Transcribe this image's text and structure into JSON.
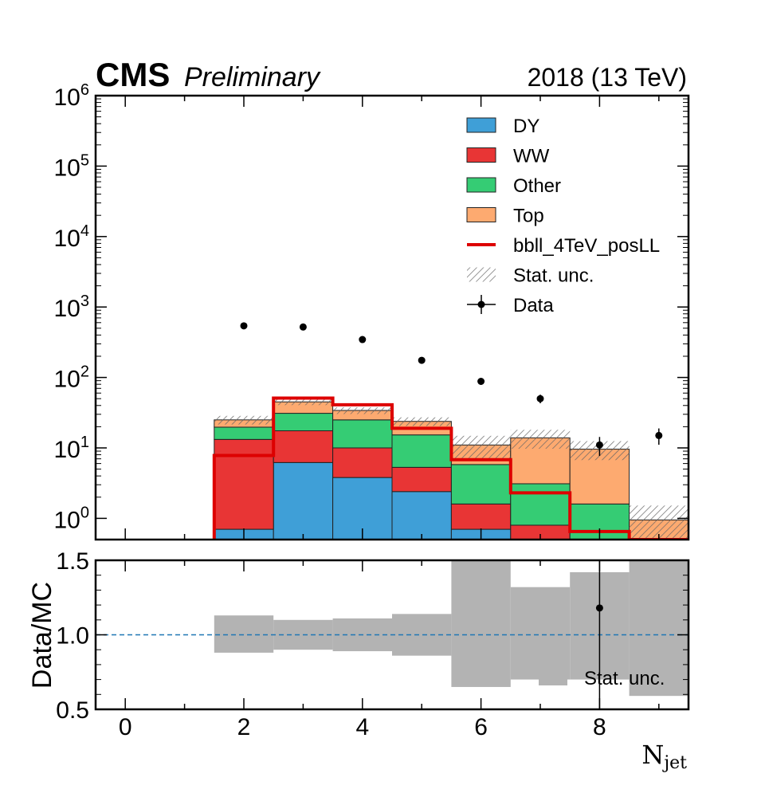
{
  "header": {
    "experiment": "CMS",
    "status": "Preliminary",
    "lumi": "2018 (13 TeV)"
  },
  "colors": {
    "DY": "#3f9fd7",
    "WW": "#e83535",
    "Other": "#35cc74",
    "Top": "#fdaa70",
    "signal": "#dd0000",
    "unc_band": "#b3b3b3",
    "ref_line": "#1f77b4"
  },
  "chart_data": [
    {
      "type": "bar",
      "stacked": true,
      "x_bins": [
        0,
        1,
        2,
        3,
        4,
        5,
        6,
        7,
        8,
        9
      ],
      "xlim": [
        -0.5,
        9.5
      ],
      "ylim": [
        0.5,
        1000000
      ],
      "yscale": "log",
      "ytick_exponents": [
        "0",
        "1",
        "2",
        "3",
        "4",
        "5",
        "6"
      ],
      "series": [
        {
          "name": "DY",
          "values": [
            0,
            0,
            0.7,
            6.2,
            3.8,
            2.4,
            0.7,
            0.3,
            0,
            0
          ]
        },
        {
          "name": "WW",
          "values": [
            0,
            0,
            12.5,
            11.3,
            6.2,
            2.9,
            0.9,
            0.5,
            0.3,
            0
          ]
        },
        {
          "name": "Other",
          "values": [
            0,
            0,
            6.5,
            13.5,
            15,
            10,
            4.2,
            2.3,
            1.3,
            0
          ]
        },
        {
          "name": "Top",
          "values": [
            0,
            0,
            5.3,
            14,
            9,
            8.5,
            5.2,
            10.8,
            8,
            0.95
          ]
        }
      ],
      "signal": {
        "name": "bbll_4TeV_posLL",
        "values": [
          0,
          0,
          7.8,
          51,
          41,
          19,
          6.8,
          2.3,
          0.65,
          0.5
        ]
      },
      "stat_unc": {
        "name": "Stat. unc.",
        "rel": [
          0,
          0,
          0.14,
          0.1,
          0.11,
          0.14,
          0.35,
          0.3,
          0.3,
          0.6
        ]
      },
      "data": {
        "name": "Data",
        "values": [
          0,
          0,
          540,
          520,
          345,
          175,
          88,
          50,
          11,
          15
        ],
        "err": [
          0,
          0,
          23,
          23,
          19,
          13,
          9.4,
          7,
          3.3,
          3.9
        ]
      },
      "legend_position": "top-right"
    },
    {
      "type": "ratio",
      "ylabel": "Data/MC",
      "xlabel": "N_jet",
      "xlabel_main": "N",
      "xlabel_sub": "jet",
      "xlim": [
        -0.5,
        9.5
      ],
      "ylim": [
        0.5,
        1.5
      ],
      "xticks": [
        "0",
        "2",
        "4",
        "6",
        "8"
      ],
      "yticks": [
        "0.5",
        "1.0",
        "1.5"
      ],
      "reference": 1.0,
      "unc_band": [
        {
          "bin": 2,
          "lo": 0.88,
          "hi": 1.13
        },
        {
          "bin": 3,
          "lo": 0.9,
          "hi": 1.1
        },
        {
          "bin": 4,
          "lo": 0.89,
          "hi": 1.11
        },
        {
          "bin": 5,
          "lo": 0.86,
          "hi": 1.14
        },
        {
          "bin": 6,
          "lo": 0.65,
          "hi": 1.5
        },
        {
          "bin": 7,
          "lo": 0.7,
          "hi": 1.32
        },
        {
          "bin": 8,
          "lo": 0.7,
          "hi": 1.42
        },
        {
          "bin": 9,
          "lo": 0.59,
          "hi": 1.5
        }
      ],
      "points": [
        {
          "x": 8,
          "y": 1.18,
          "lo": 0.5,
          "hi": 1.5
        }
      ],
      "legend": "Stat. unc.",
      "legend_position": "bottom-right"
    }
  ]
}
